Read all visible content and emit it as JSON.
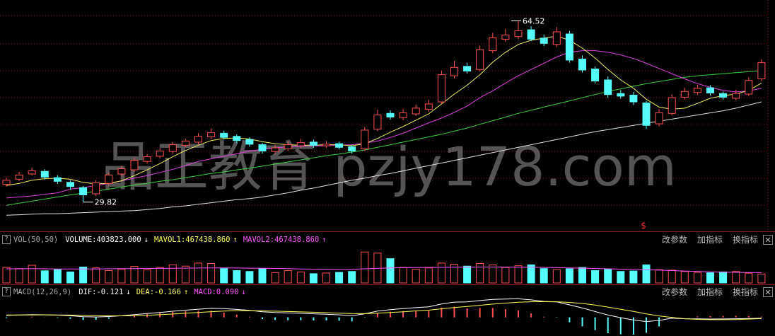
{
  "chart_data": {
    "type": "candlestick",
    "open": [
      33.2,
      34.2,
      35.2,
      35.7,
      34.5,
      33.6,
      32.6,
      31.4,
      33.4,
      35.2,
      36.0,
      37.6,
      38.6,
      39.5,
      40.7,
      41.3,
      42.3,
      43.0,
      42.4,
      41.8,
      40.8,
      39.5,
      40.0,
      40.6,
      41.3,
      40.6,
      41.0,
      40.4,
      40.0,
      43.8,
      46.8,
      46.0,
      46.7,
      47.6,
      49.0,
      54.0,
      55.8,
      55.2,
      58.8,
      61.0,
      61.5,
      62.8,
      61.2,
      60.0,
      62.0,
      57.2,
      55.3,
      53.2,
      50.6,
      50.3,
      48.8,
      44.8,
      46.8,
      49.9,
      50.8,
      51.7,
      50.6,
      49.7,
      50.5,
      53.4
    ],
    "high": [
      34.5,
      35.6,
      36.4,
      36.1,
      35.0,
      34.0,
      32.9,
      34.0,
      35.5,
      36.8,
      38.3,
      39.0,
      40.2,
      41.3,
      42.0,
      43.0,
      43.9,
      43.5,
      42.8,
      42.2,
      41.2,
      40.8,
      41.4,
      41.9,
      41.8,
      41.5,
      41.4,
      40.8,
      44.2,
      47.5,
      47.4,
      47.6,
      48.5,
      49.4,
      55.0,
      56.8,
      56.5,
      59.8,
      62.2,
      63.0,
      64.52,
      63.5,
      61.9,
      63.3,
      62.6,
      57.9,
      55.8,
      53.9,
      51.3,
      50.9,
      49.2,
      47.6,
      50.4,
      51.7,
      52.3,
      52.2,
      51.0,
      51.3,
      53.7,
      57.2
    ],
    "low": [
      32.8,
      33.8,
      34.9,
      34.1,
      33.3,
      32.2,
      29.82,
      31.0,
      33.0,
      34.8,
      35.6,
      37.2,
      38.2,
      39.1,
      40.3,
      40.9,
      41.9,
      41.8,
      41.1,
      40.4,
      39.1,
      39.0,
      39.6,
      40.2,
      40.2,
      40.2,
      39.9,
      39.1,
      39.6,
      43.4,
      45.6,
      45.5,
      46.3,
      47.1,
      48.6,
      53.5,
      54.4,
      54.8,
      58.3,
      60.5,
      61.0,
      60.6,
      59.7,
      59.5,
      56.5,
      54.6,
      52.5,
      49.8,
      49.6,
      48.4,
      43.8,
      44.3,
      46.4,
      49.5,
      50.3,
      50.2,
      49.4,
      49.3,
      50.1,
      53.0
    ],
    "close": [
      34.0,
      35.0,
      35.8,
      34.6,
      33.8,
      32.8,
      31.2,
      33.5,
      35.0,
      36.2,
      37.8,
      38.5,
      39.6,
      40.8,
      41.5,
      42.4,
      43.1,
      42.2,
      41.6,
      40.9,
      39.6,
      40.2,
      40.8,
      41.2,
      40.7,
      40.9,
      40.3,
      39.6,
      43.6,
      46.5,
      46.1,
      46.9,
      47.8,
      48.6,
      54.2,
      55.6,
      54.9,
      59.0,
      61.3,
      61.8,
      62.6,
      61.0,
      60.2,
      62.4,
      57.0,
      55.1,
      53.0,
      50.4,
      50.1,
      49.0,
      44.5,
      46.9,
      49.8,
      51.0,
      51.6,
      50.7,
      49.9,
      50.6,
      53.1,
      56.5
    ],
    "up_color": "#ff5050",
    "down_color": "#54fcfc",
    "ylim": [
      24.5,
      68.5
    ],
    "series": [
      {
        "color": "#e0e0e0",
        "values": [
          27.3,
          27.4,
          27.5,
          27.6,
          27.6,
          27.7,
          27.8,
          27.9,
          28.0,
          28.1,
          28.2,
          28.4,
          28.6,
          28.9,
          29.1,
          29.4,
          29.7,
          30.0,
          30.3,
          30.5,
          30.8,
          31.2,
          31.6,
          32.1,
          32.5,
          33.0,
          33.5,
          34.0,
          34.4,
          34.9,
          35.3,
          35.8,
          36.3,
          36.8,
          37.3,
          37.8,
          38.3,
          38.8,
          39.3,
          39.8,
          40.3,
          40.8,
          41.3,
          41.8,
          42.3,
          42.8,
          43.3,
          43.7,
          44.1,
          44.5,
          44.9,
          45.3,
          45.7,
          46.1,
          46.5,
          46.9,
          47.3,
          47.8,
          48.4,
          49.0
        ]
      },
      {
        "color": "#3ccf3c",
        "values": [
          29.2,
          29.6,
          30.0,
          30.4,
          30.8,
          31.2,
          31.5,
          31.9,
          32.3,
          32.7,
          33.1,
          33.4,
          33.8,
          34.1,
          34.5,
          34.9,
          35.3,
          35.6,
          36.0,
          36.3,
          36.7,
          37.1,
          37.5,
          37.9,
          38.3,
          38.7,
          39.0,
          39.4,
          39.8,
          40.3,
          40.8,
          41.3,
          41.8,
          42.3,
          42.8,
          43.4,
          44.0,
          44.7,
          45.4,
          46.1,
          46.8,
          47.4,
          48.0,
          48.6,
          49.2,
          49.8,
          50.4,
          51.0,
          51.5,
          52.0,
          52.5,
          52.9,
          53.3,
          53.7,
          54.0,
          54.2,
          54.4,
          54.6,
          54.8,
          55.0
        ]
      },
      {
        "color": "#e040e0",
        "values": [
          30.6,
          30.8,
          31.0,
          31.3,
          31.6,
          32.3,
          32.6,
          33.0,
          33.4,
          33.9,
          34.4,
          34.9,
          35.5,
          36.1,
          36.8,
          37.6,
          38.1,
          38.6,
          39.1,
          39.6,
          39.9,
          40.2,
          40.4,
          40.5,
          40.6,
          40.6,
          40.7,
          40.8,
          41.1,
          41.5,
          42.2,
          43.0,
          44.0,
          45.0,
          45.9,
          47.0,
          48.2,
          49.8,
          51.1,
          52.6,
          54.0,
          55.2,
          56.4,
          57.6,
          58.5,
          58.8,
          58.8,
          58.5,
          58.0,
          57.3,
          56.4,
          55.4,
          54.4,
          53.4,
          52.5,
          51.8,
          51.2,
          50.9,
          51.1,
          51.6
        ]
      },
      {
        "color": "#f0f060",
        "values": [
          33.0,
          33.4,
          34.0,
          34.3,
          34.4,
          34.2,
          33.6,
          33.3,
          33.4,
          33.9,
          34.9,
          36.0,
          37.2,
          38.5,
          39.7,
          40.7,
          41.6,
          42.0,
          42.1,
          41.9,
          41.4,
          41.0,
          40.8,
          40.7,
          40.7,
          40.8,
          40.8,
          40.6,
          41.0,
          42.0,
          43.2,
          44.3,
          45.5,
          46.7,
          48.6,
          50.5,
          52.2,
          54.2,
          56.6,
          58.5,
          60.0,
          60.8,
          61.2,
          61.6,
          60.8,
          59.3,
          57.4,
          55.2,
          53.2,
          51.6,
          49.5,
          48.0,
          47.6,
          47.8,
          48.7,
          49.7,
          50.2,
          50.5,
          51.2,
          52.6
        ]
      }
    ],
    "annotations": [
      {
        "text": "64.52"
      },
      {
        "text": "29.82"
      }
    ],
    "signal_marker": "$",
    "watermark": "品正教育 pzjy178.com",
    "help": "?",
    "buttons": [
      "改参数",
      "加指标",
      "换指标"
    ],
    "volume": {
      "name": "VOL(50,50)",
      "items": [
        {
          "text": "VOLUME:403823.000",
          "arrow": "↓",
          "color": "#ffffff"
        },
        {
          "text": "MAVOL1:467438.860",
          "arrow": "↑",
          "color": "#ffff54"
        },
        {
          "text": "MAVOL2:467438.860",
          "arrow": "↑",
          "color": "#ff54ff"
        }
      ],
      "values": [
        700000,
        650000,
        800000,
        550000,
        600000,
        500000,
        720000,
        680000,
        560000,
        620000,
        750000,
        600000,
        700000,
        820000,
        760000,
        900000,
        880000,
        650000,
        560000,
        520000,
        640000,
        470000,
        560000,
        500000,
        420000,
        450000,
        480000,
        520000,
        1400000,
        1350000,
        1100000,
        700000,
        620000,
        680000,
        900000,
        850000,
        760000,
        880000,
        820000,
        700000,
        780000,
        820000,
        650000,
        600000,
        640000,
        700000,
        560000,
        620000,
        520000,
        540000,
        820000,
        600000,
        580000,
        520000,
        480000,
        460000,
        500000,
        520000,
        440000,
        403823
      ],
      "ma": [
        640000,
        640000,
        645000,
        640000,
        635000,
        630000,
        630000,
        635000,
        640000,
        645000,
        650000,
        655000,
        660000,
        665000,
        670000,
        675000,
        680000,
        680000,
        675000,
        670000,
        665000,
        655000,
        645000,
        635000,
        625000,
        615000,
        610000,
        620000,
        640000,
        660000,
        680000,
        690000,
        695000,
        700000,
        705000,
        710000,
        715000,
        720000,
        720000,
        718000,
        715000,
        710000,
        700000,
        690000,
        680000,
        670000,
        655000,
        640000,
        625000,
        610000,
        595000,
        580000,
        560000,
        540000,
        520000,
        505000,
        490000,
        480000,
        472000,
        467438.86
      ],
      "ma_color": "#ff54ff",
      "ylim": [
        0,
        1600000
      ]
    },
    "macd": {
      "name": "MACD(12,26,9)",
      "items": [
        {
          "text": "DIF:-0.121",
          "arrow": "↓",
          "color": "#ffffff"
        },
        {
          "text": "DEA:-0.166",
          "arrow": "↑",
          "color": "#ffff54"
        },
        {
          "text": "MACD:0.090",
          "arrow": "↓",
          "color": "#ff54ff"
        }
      ],
      "dif": [
        0.25,
        0.3,
        0.35,
        0.33,
        0.28,
        0.2,
        0.08,
        0.05,
        0.1,
        0.2,
        0.35,
        0.48,
        0.62,
        0.78,
        0.92,
        1.05,
        1.15,
        1.12,
        1.02,
        0.9,
        0.72,
        0.62,
        0.56,
        0.52,
        0.45,
        0.4,
        0.32,
        0.22,
        0.45,
        0.8,
        0.98,
        1.12,
        1.25,
        1.35,
        1.72,
        1.95,
        1.98,
        2.15,
        2.3,
        2.35,
        2.38,
        2.25,
        2.05,
        1.98,
        1.6,
        1.2,
        0.75,
        0.3,
        -0.05,
        -0.35,
        -0.55,
        -0.4,
        -0.1,
        -0.18,
        -0.2,
        -0.22,
        -0.21,
        -0.18,
        -0.15,
        -0.121
      ],
      "dea": [
        0.3,
        0.3,
        0.31,
        0.32,
        0.31,
        0.29,
        0.25,
        0.21,
        0.19,
        0.19,
        0.22,
        0.27,
        0.34,
        0.43,
        0.53,
        0.63,
        0.73,
        0.81,
        0.85,
        0.86,
        0.83,
        0.79,
        0.75,
        0.7,
        0.65,
        0.6,
        0.54,
        0.48,
        0.47,
        0.53,
        0.62,
        0.72,
        0.83,
        0.93,
        1.09,
        1.26,
        1.4,
        1.55,
        1.7,
        1.83,
        1.94,
        2.0,
        2.01,
        2.0,
        1.92,
        1.78,
        1.57,
        1.32,
        1.04,
        0.76,
        0.44,
        0.18,
        -0.02,
        -0.18,
        -0.26,
        -0.3,
        -0.3,
        -0.28,
        -0.23,
        -0.166
      ],
      "hist": [
        -0.1,
        0.0,
        0.08,
        0.02,
        -0.06,
        -0.18,
        -0.34,
        -0.32,
        -0.18,
        0.02,
        0.26,
        0.42,
        0.56,
        0.7,
        0.78,
        0.84,
        0.84,
        0.62,
        0.34,
        0.08,
        -0.22,
        -0.34,
        -0.38,
        -0.36,
        -0.4,
        -0.4,
        -0.44,
        -0.52,
        -0.04,
        0.54,
        0.72,
        0.8,
        0.84,
        0.84,
        1.26,
        1.38,
        1.16,
        1.2,
        1.2,
        1.04,
        0.88,
        0.5,
        0.08,
        -0.04,
        -0.64,
        -1.16,
        -1.64,
        -2.04,
        -2.18,
        -2.22,
        -1.98,
        -1.16,
        -0.16,
        0.0,
        0.12,
        0.16,
        0.18,
        0.2,
        0.16,
        0.09
      ],
      "dif_color": "#ffffff",
      "dea_color": "#ffff54",
      "ylim": [
        -2.4,
        2.6
      ]
    }
  }
}
